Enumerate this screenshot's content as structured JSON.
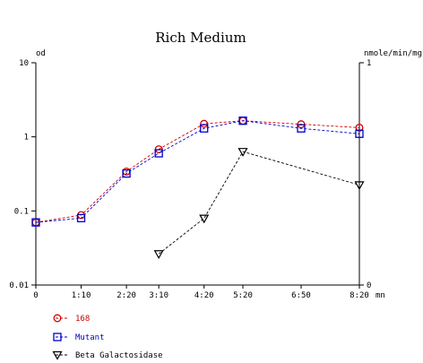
{
  "chart_data": {
    "type": "line",
    "title": "Rich Medium",
    "left_axis": {
      "label": "od",
      "scale": "log",
      "range": [
        0.01,
        10
      ],
      "tick_labels": [
        "10",
        "1",
        "0.1",
        "0.01"
      ],
      "tick_values": [
        10,
        1,
        0.1,
        0.01
      ]
    },
    "right_axis": {
      "label": "nmole/min/mg",
      "scale": "linear",
      "range": [
        0,
        1
      ],
      "tick_labels": [
        "1",
        "0"
      ],
      "tick_values": [
        1,
        0
      ]
    },
    "x_axis": {
      "unit": "mn",
      "tick_labels": [
        "0",
        "1:10",
        "2:20",
        "3:10",
        "4:20",
        "5:20",
        "6:50",
        "8:20"
      ],
      "tick_minutes": [
        0,
        70,
        140,
        190,
        260,
        320,
        410,
        500
      ],
      "range": [
        0,
        500
      ]
    },
    "grid": false,
    "legend_position": "bottom-left",
    "series": [
      {
        "name": "168",
        "axis": "left",
        "marker": "circle",
        "color": "#cc0000",
        "x": [
          0,
          70,
          140,
          190,
          260,
          320,
          410,
          500
        ],
        "y": [
          0.07,
          0.088,
          0.34,
          0.68,
          1.5,
          1.65,
          1.48,
          1.33
        ]
      },
      {
        "name": "Mutant",
        "axis": "left",
        "marker": "square",
        "color": "#0000cc",
        "x": [
          0,
          70,
          140,
          190,
          260,
          320,
          410,
          500
        ],
        "y": [
          0.07,
          0.08,
          0.32,
          0.6,
          1.3,
          1.65,
          1.3,
          1.1
        ]
      },
      {
        "name": "Beta Galactosidase",
        "axis": "right",
        "marker": "triangle-down",
        "color": "#000000",
        "x": [
          190,
          260,
          320,
          500
        ],
        "y": [
          0.14,
          0.3,
          0.6,
          0.45
        ]
      }
    ]
  }
}
